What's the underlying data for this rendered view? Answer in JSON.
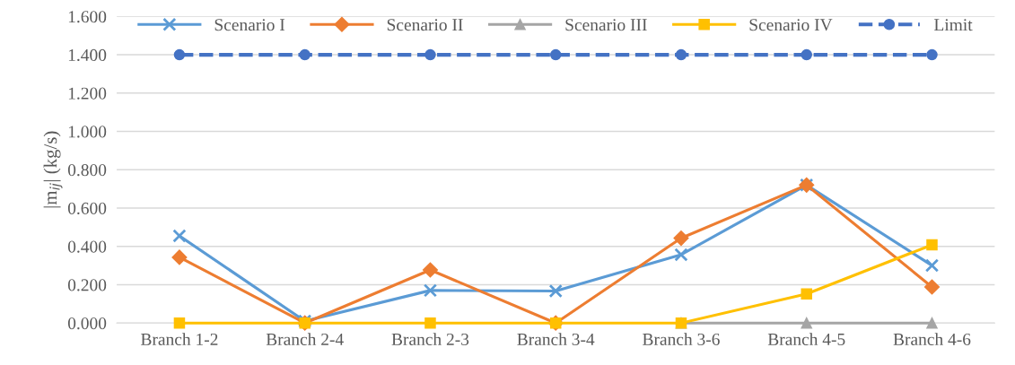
{
  "chart_data": {
    "type": "line",
    "ylabel": "|m$_{ij}$| (kg/s)",
    "categories": [
      "Branch 1-2",
      "Branch 2-4",
      "Branch 2-3",
      "Branch 3-4",
      "Branch 3-6",
      "Branch 4-5",
      "Branch 4-6"
    ],
    "series": [
      {
        "name": "Scenario I",
        "color": "#5b9bd5",
        "marker": "cross",
        "line_style": "solid",
        "values": [
          0.455,
          0.01,
          0.17,
          0.167,
          0.357,
          0.72,
          0.3
        ]
      },
      {
        "name": "Scenario II",
        "color": "#ed7d31",
        "marker": "diamond",
        "line_style": "solid",
        "values": [
          0.343,
          0.0,
          0.277,
          0.0,
          0.443,
          0.72,
          0.188
        ]
      },
      {
        "name": "Scenario III",
        "color": "#a5a5a5",
        "marker": "triangle",
        "line_style": "solid",
        "values": [
          null,
          null,
          null,
          null,
          0.0,
          0.0,
          0.0
        ]
      },
      {
        "name": "Scenario IV",
        "color": "#ffc000",
        "marker": "square",
        "line_style": "solid",
        "values": [
          0.0,
          0.0,
          0.0,
          0.0,
          0.0,
          0.152,
          0.408
        ]
      },
      {
        "name": "Limit",
        "color": "#4472c4",
        "marker": "circle",
        "line_style": "dashed",
        "values": [
          1.4,
          1.4,
          1.4,
          1.4,
          1.4,
          1.4,
          1.4
        ]
      }
    ],
    "ylim": [
      0,
      1.6
    ],
    "yticks": [
      {
        "value": 0,
        "label": "0.000"
      },
      {
        "value": 0.2,
        "label": "0.200"
      },
      {
        "value": 0.4,
        "label": "0.400"
      },
      {
        "value": 0.6,
        "label": "0.600"
      },
      {
        "value": 0.8,
        "label": "0.800"
      },
      {
        "value": 1.0,
        "label": "1.000"
      },
      {
        "value": 1.2,
        "label": "1.200"
      },
      {
        "value": 1.4,
        "label": "1.400"
      },
      {
        "value": 1.6,
        "label": "1.600"
      }
    ],
    "grid": "y",
    "legend": "top"
  }
}
